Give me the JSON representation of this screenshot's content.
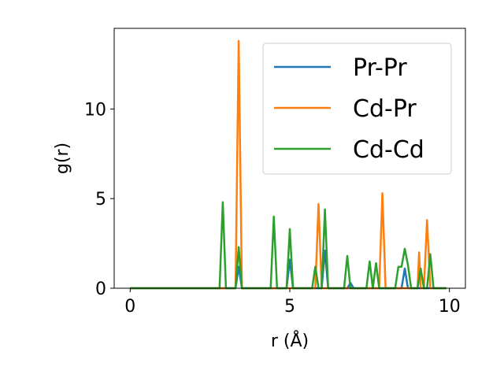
{
  "chart_data": {
    "type": "line",
    "xlabel": "r (Å)",
    "ylabel": "g(r)",
    "xlim": [
      -0.5,
      10.5
    ],
    "ylim": [
      0,
      14.5
    ],
    "xticks": [
      0,
      5,
      10
    ],
    "yticks": [
      0,
      5,
      10
    ],
    "grid": false,
    "legend_position": "top-right",
    "series": [
      {
        "name": "Pr-Pr",
        "color": "#1f77b4",
        "points": [
          [
            0,
            0
          ],
          [
            3.3,
            0
          ],
          [
            3.4,
            1.2
          ],
          [
            3.5,
            0
          ],
          [
            4.9,
            0
          ],
          [
            5.0,
            1.6
          ],
          [
            5.1,
            0
          ],
          [
            6.0,
            0
          ],
          [
            6.1,
            2.1
          ],
          [
            6.2,
            0
          ],
          [
            6.8,
            0
          ],
          [
            6.9,
            0.3
          ],
          [
            7.0,
            0
          ],
          [
            8.5,
            0
          ],
          [
            8.6,
            1.1
          ],
          [
            8.7,
            0
          ],
          [
            9.9,
            0
          ]
        ]
      },
      {
        "name": "Cd-Pr",
        "color": "#ff7f0e",
        "points": [
          [
            0,
            0
          ],
          [
            3.3,
            0
          ],
          [
            3.4,
            13.8
          ],
          [
            3.5,
            0
          ],
          [
            5.8,
            0
          ],
          [
            5.9,
            4.7
          ],
          [
            6.0,
            0
          ],
          [
            7.8,
            0
          ],
          [
            7.9,
            5.3
          ],
          [
            8.0,
            0
          ],
          [
            9.0,
            0
          ],
          [
            9.05,
            2.0
          ],
          [
            9.1,
            0
          ],
          [
            9.2,
            0
          ],
          [
            9.3,
            3.8
          ],
          [
            9.4,
            0
          ],
          [
            9.9,
            0
          ]
        ]
      },
      {
        "name": "Cd-Cd",
        "color": "#2ca02c",
        "points": [
          [
            0,
            0
          ],
          [
            2.8,
            0
          ],
          [
            2.9,
            4.8
          ],
          [
            3.0,
            0
          ],
          [
            3.3,
            0
          ],
          [
            3.4,
            2.3
          ],
          [
            3.5,
            0
          ],
          [
            4.4,
            0
          ],
          [
            4.5,
            4.0
          ],
          [
            4.6,
            0
          ],
          [
            4.9,
            0
          ],
          [
            5.0,
            3.3
          ],
          [
            5.1,
            0
          ],
          [
            5.7,
            0
          ],
          [
            5.8,
            1.2
          ],
          [
            5.9,
            0
          ],
          [
            6.0,
            0
          ],
          [
            6.1,
            4.4
          ],
          [
            6.2,
            0
          ],
          [
            6.7,
            0
          ],
          [
            6.8,
            1.8
          ],
          [
            6.9,
            0
          ],
          [
            7.4,
            0
          ],
          [
            7.5,
            1.5
          ],
          [
            7.6,
            0
          ],
          [
            7.7,
            1.4
          ],
          [
            7.8,
            0
          ],
          [
            8.3,
            0
          ],
          [
            8.4,
            1.2
          ],
          [
            8.5,
            1.2
          ],
          [
            8.6,
            2.2
          ],
          [
            8.7,
            1.3
          ],
          [
            8.8,
            0
          ],
          [
            9.0,
            0
          ],
          [
            9.1,
            1.1
          ],
          [
            9.2,
            0
          ],
          [
            9.3,
            0
          ],
          [
            9.4,
            1.9
          ],
          [
            9.5,
            0
          ],
          [
            9.9,
            0
          ]
        ]
      }
    ]
  }
}
